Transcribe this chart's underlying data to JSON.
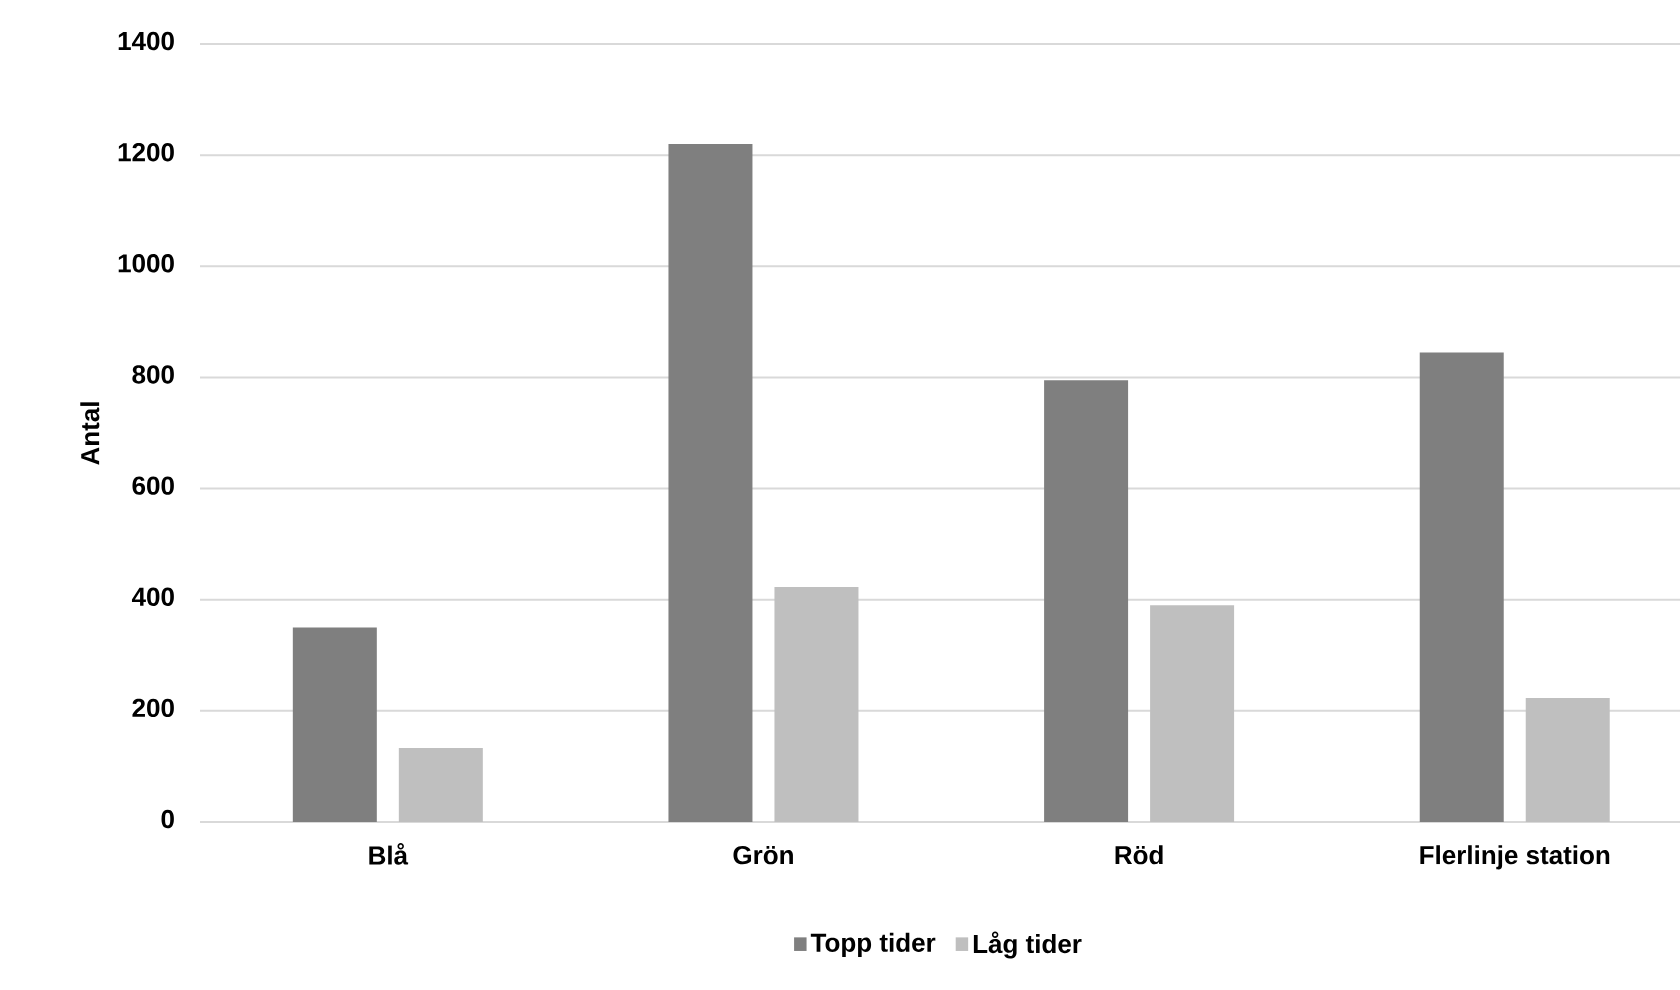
{
  "chart_data": {
    "type": "bar",
    "ylabel": "Antal",
    "categories": [
      "Blå",
      "Grön",
      "Röd",
      "Flerlinje station"
    ],
    "series": [
      {
        "name": "Topp tider",
        "color": "#7f7f7f",
        "values": [
          350,
          1220,
          795,
          845
        ]
      },
      {
        "name": "Låg tider",
        "color": "#bfbfbf",
        "values": [
          133,
          423,
          390,
          223
        ]
      }
    ],
    "ylim": [
      0,
      1400
    ],
    "yticks": [
      0,
      200,
      400,
      600,
      800,
      1000,
      1200,
      1400
    ],
    "grid": "y",
    "legend": "bottom"
  }
}
